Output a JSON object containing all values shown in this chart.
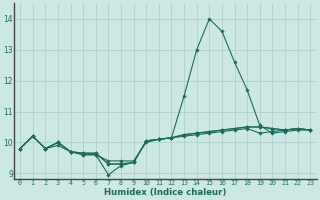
{
  "xlabel": "Humidex (Indice chaleur)",
  "bg_color": "#cce8e4",
  "grid_color": "#aaccc8",
  "line_color": "#1a6b5a",
  "xlim": [
    -0.5,
    23.5
  ],
  "ylim": [
    8.8,
    14.5
  ],
  "yticks": [
    9,
    10,
    11,
    12,
    13,
    14
  ],
  "xticks": [
    0,
    1,
    2,
    3,
    4,
    5,
    6,
    7,
    8,
    9,
    10,
    11,
    12,
    13,
    14,
    15,
    16,
    17,
    18,
    19,
    20,
    21,
    22,
    23
  ],
  "series": [
    [
      9.8,
      10.2,
      9.8,
      10.0,
      9.7,
      9.6,
      9.6,
      9.4,
      9.4,
      9.4,
      10.0,
      10.1,
      10.15,
      10.2,
      10.25,
      10.3,
      10.35,
      10.4,
      10.45,
      10.3,
      10.35,
      10.4,
      10.45,
      10.4
    ],
    [
      9.8,
      10.2,
      9.8,
      9.9,
      9.7,
      9.6,
      9.6,
      8.95,
      9.25,
      9.35,
      10.05,
      10.1,
      10.15,
      11.5,
      13.0,
      14.0,
      13.6,
      12.6,
      11.7,
      10.55,
      10.3,
      10.35,
      10.4,
      10.4
    ],
    [
      9.8,
      10.2,
      9.8,
      10.0,
      9.7,
      9.65,
      9.65,
      9.3,
      9.3,
      9.35,
      10.05,
      10.1,
      10.15,
      10.25,
      10.3,
      10.35,
      10.4,
      10.45,
      10.5,
      10.5,
      10.45,
      10.4,
      10.45,
      10.4
    ],
    [
      9.8,
      10.2,
      9.8,
      10.0,
      9.7,
      9.65,
      9.65,
      9.3,
      9.3,
      9.35,
      10.05,
      10.1,
      10.15,
      10.25,
      10.3,
      10.35,
      10.4,
      10.45,
      10.5,
      10.5,
      10.45,
      10.4,
      10.45,
      10.4
    ]
  ]
}
